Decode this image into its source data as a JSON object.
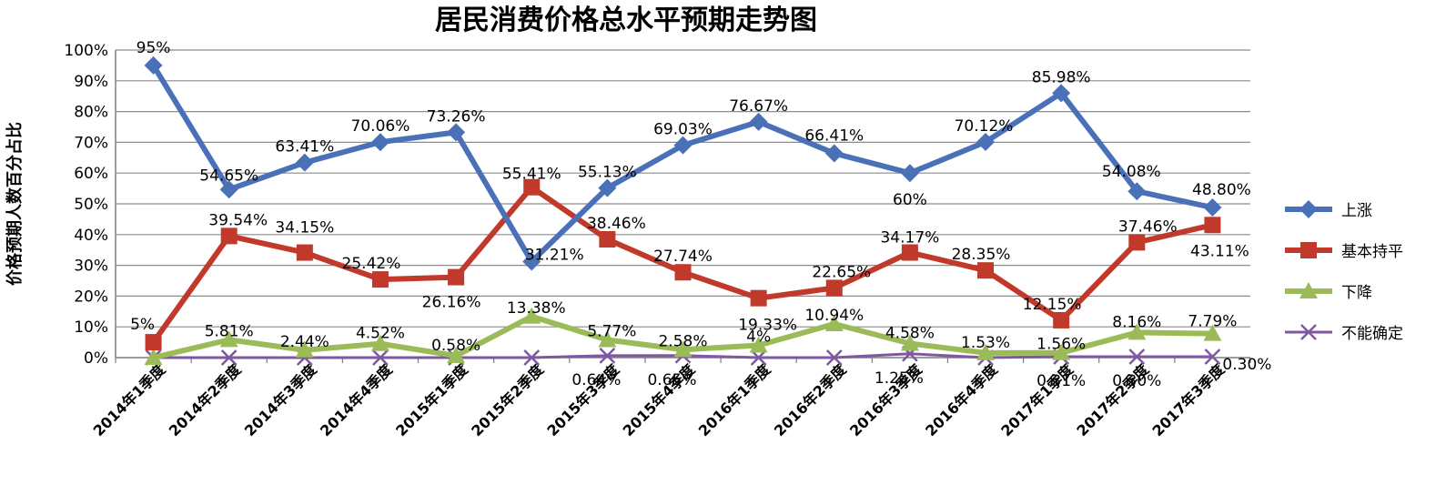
{
  "chart_data": {
    "type": "line",
    "title": "居民消费价格总水平预期走势图",
    "ylabel": "价格预期人数百分占比",
    "xlabel": "",
    "ylim": [
      0,
      100
    ],
    "yticks": [
      "0%",
      "10%",
      "20%",
      "30%",
      "40%",
      "50%",
      "60%",
      "70%",
      "80%",
      "90%",
      "100%"
    ],
    "grid": "horizontal",
    "legend_position": "right",
    "categories": [
      "2014年1季度",
      "2014年2季度",
      "2014年3季度",
      "2014年4季度",
      "2015年1季度",
      "2015年2季度",
      "2015年3季度",
      "2015年4季度",
      "2016年1季度",
      "2016年2季度",
      "2016年3季度",
      "2016年4季度",
      "2017年1季度",
      "2017年2季度",
      "2017年3季度"
    ],
    "series": [
      {
        "name": "上涨",
        "color": "#4A71B8",
        "marker": "diamond",
        "values": [
          95,
          54.65,
          63.41,
          70.06,
          73.26,
          31.21,
          55.13,
          69.03,
          76.67,
          66.41,
          60,
          70.12,
          85.98,
          54.08,
          48.8
        ],
        "labels": [
          "95%",
          "54.65%",
          "63.41%",
          "70.06%",
          "73.26%",
          "31.21%",
          "55.13%",
          "69.03%",
          "76.67%",
          "66.41%",
          "60%",
          "70.12%",
          "85.98%",
          "54.08%",
          "48.80%"
        ]
      },
      {
        "name": "基本持平",
        "color": "#C0392B",
        "marker": "square",
        "values": [
          5,
          39.54,
          34.15,
          25.42,
          26.16,
          55.41,
          38.46,
          27.74,
          19.33,
          22.65,
          34.17,
          28.35,
          12.15,
          37.46,
          43.11
        ],
        "labels": [
          "5%",
          "39.54%",
          "34.15%",
          "25.42%",
          "26.16%",
          "55.41%",
          "38.46%",
          "27.74%",
          "19.33%",
          "22.65%",
          "34.17%",
          "28.35%",
          "12.15%",
          "37.46%",
          "43.11%"
        ]
      },
      {
        "name": "下降",
        "color": "#9BBB59",
        "marker": "triangle",
        "values": [
          0,
          5.81,
          2.44,
          4.52,
          0.58,
          13.38,
          5.77,
          2.58,
          4,
          10.94,
          4.58,
          1.53,
          1.56,
          8.16,
          7.79
        ],
        "labels": [
          "",
          "5.81%",
          "2.44%",
          "4.52%",
          "0.58%",
          "13.38%",
          "5.77%",
          "2.58%",
          "4%",
          "10.94%",
          "4.58%",
          "1.53%",
          "1.56%",
          "8.16%",
          "7.79%"
        ]
      },
      {
        "name": "不能确定",
        "color": "#7E58A0",
        "marker": "x",
        "values": [
          0,
          0,
          0,
          0,
          0,
          0,
          0.64,
          0.65,
          0,
          0,
          1.25,
          0,
          0.31,
          0.3,
          0.3
        ],
        "labels": [
          "",
          "",
          "",
          "",
          "",
          "",
          "0.64%",
          "0.65%",
          "",
          "",
          "1.25%",
          "",
          "0.31%",
          "0.30%",
          "0.30%"
        ]
      }
    ]
  }
}
